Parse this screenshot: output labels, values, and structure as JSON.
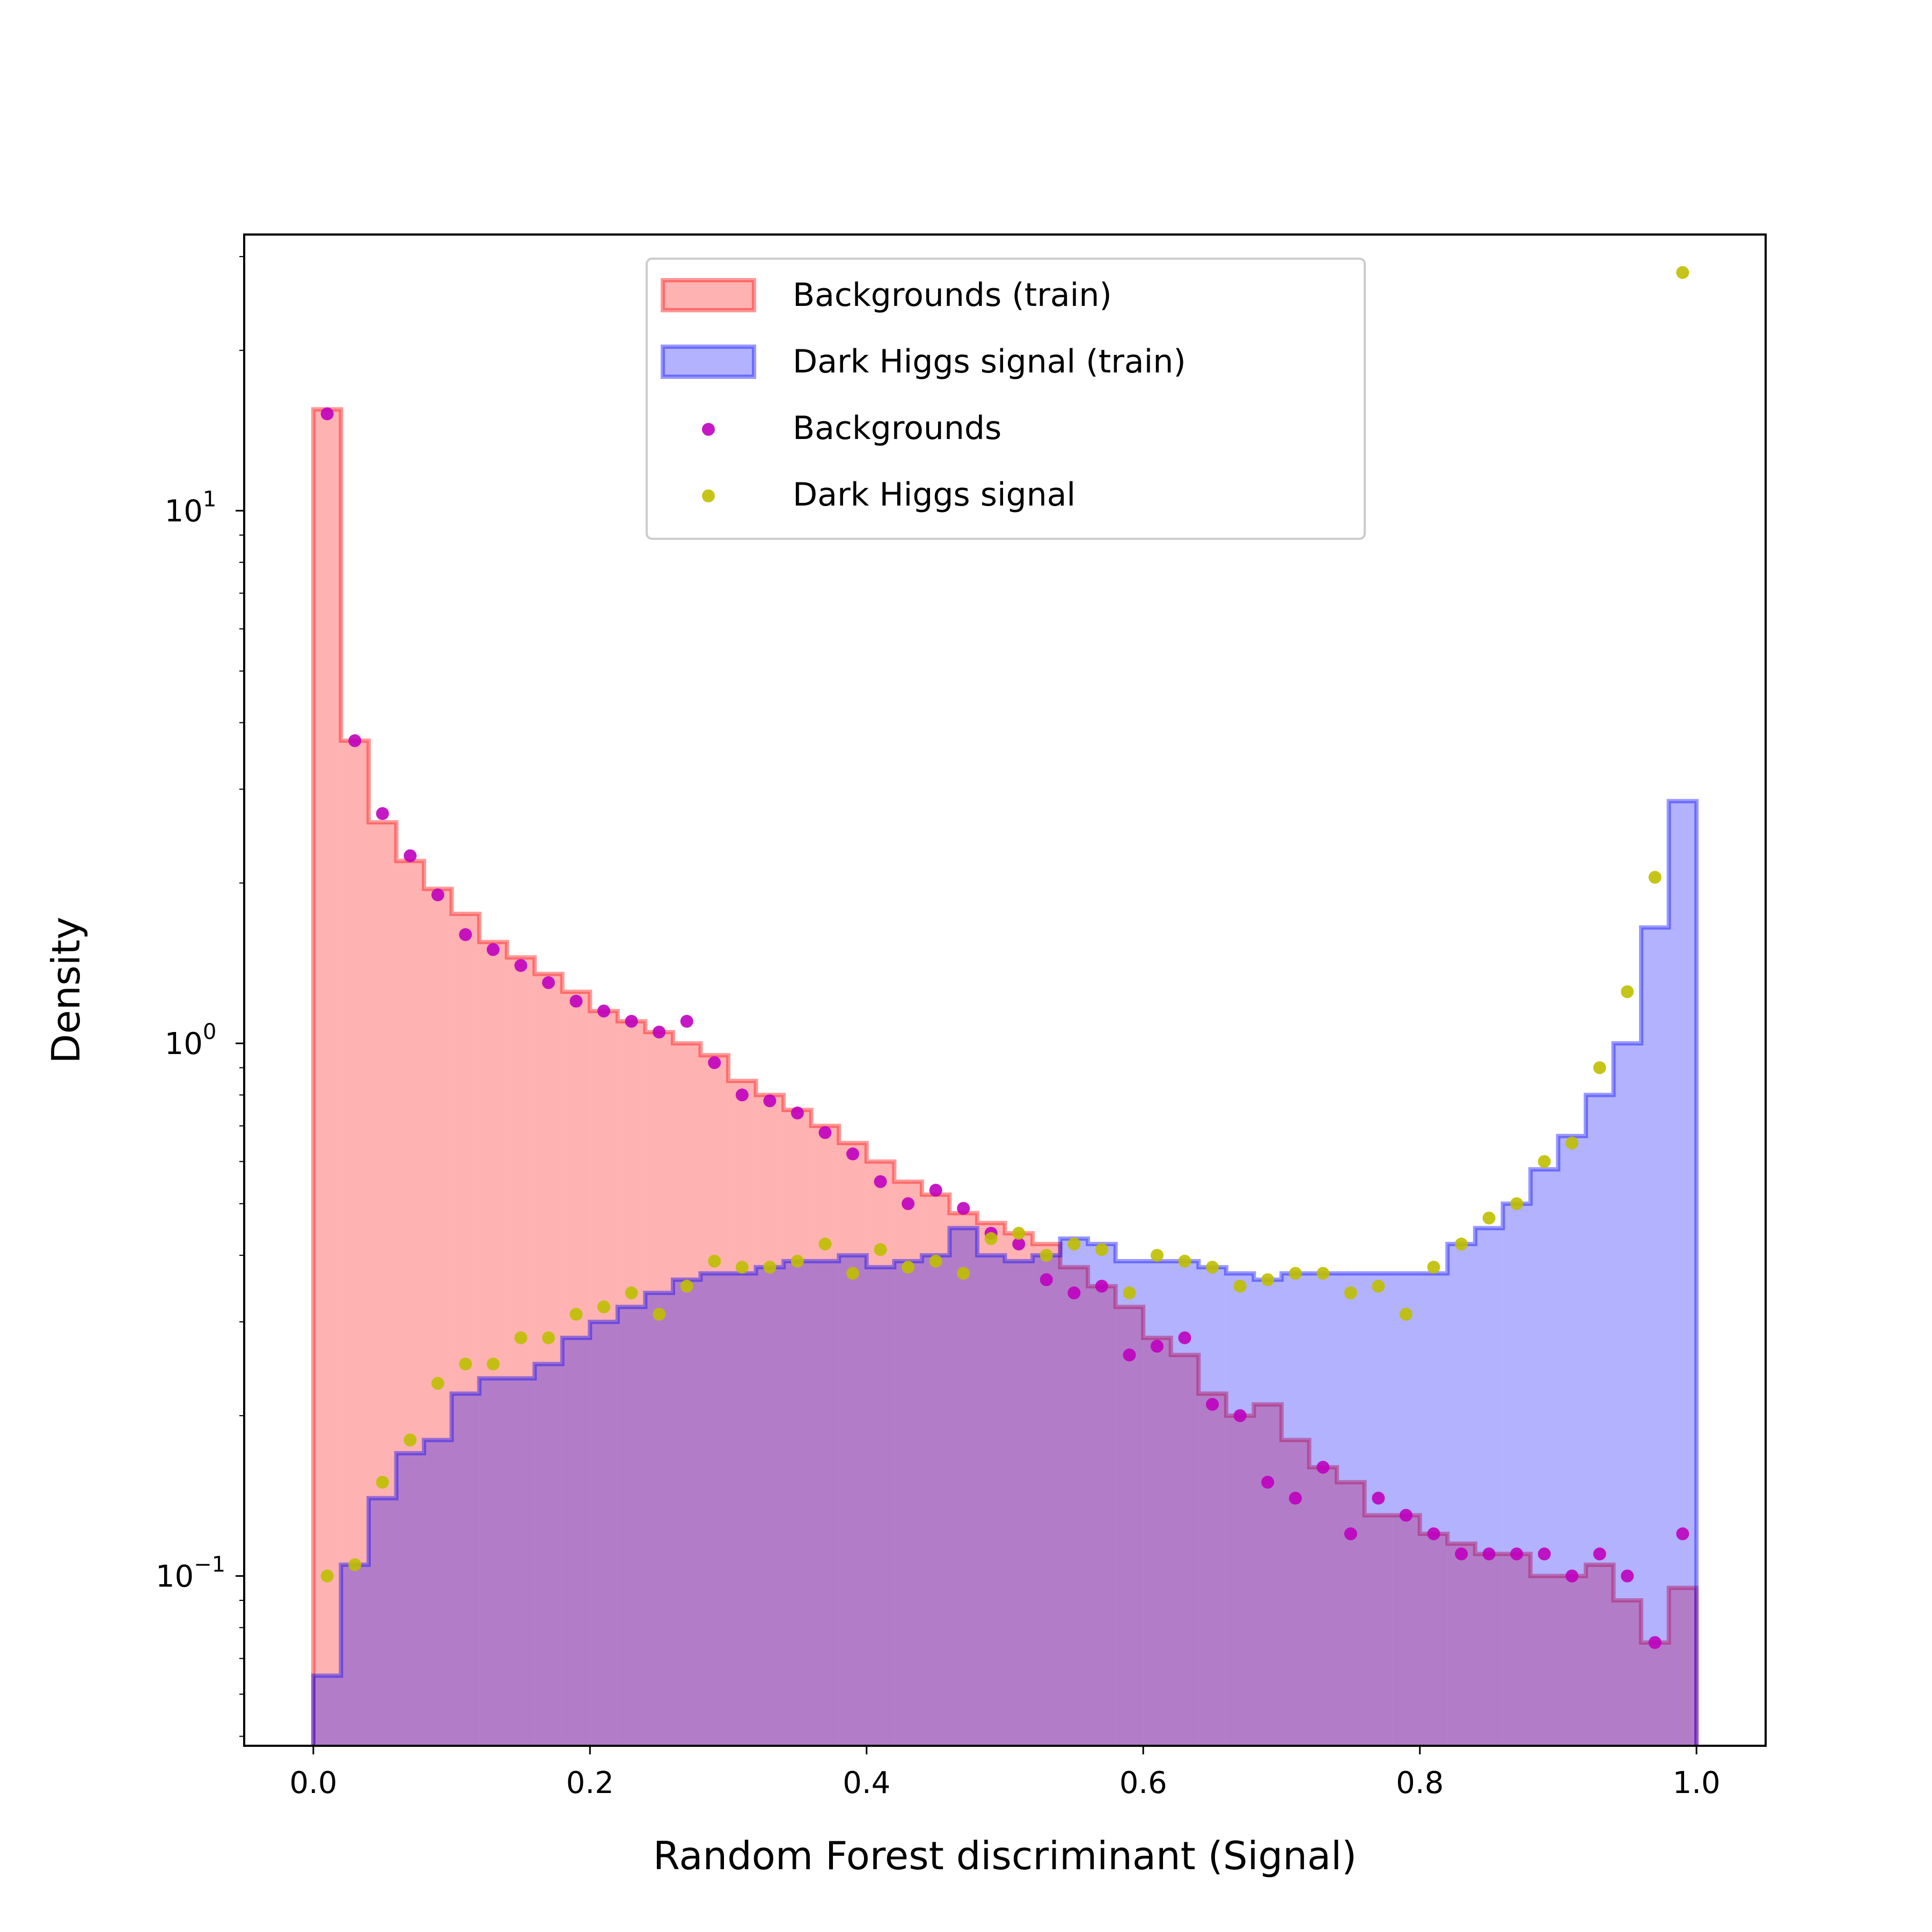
{
  "chart_data": {
    "type": "bar",
    "xlabel": "Random Forest discriminant (Signal)",
    "ylabel": "Density",
    "xlim": [
      -0.05,
      1.05
    ],
    "ylim": [
      0.048,
      33
    ],
    "yscale": "log",
    "xticks": [
      0.0,
      0.2,
      0.4,
      0.6,
      0.8,
      1.0
    ],
    "xtick_labels": [
      "0.0",
      "0.2",
      "0.4",
      "0.6",
      "0.8",
      "1.0"
    ],
    "yticks": [
      {
        "value": 10,
        "base": "10",
        "exp": "1"
      },
      {
        "value": 1,
        "base": "10",
        "exp": "0"
      },
      {
        "value": 0.1,
        "base": "10",
        "exp": "−1"
      }
    ],
    "bin_width": 0.02,
    "bin_centers": [
      0.01,
      0.03,
      0.05,
      0.07,
      0.09,
      0.11,
      0.13,
      0.15,
      0.17,
      0.19,
      0.21,
      0.23,
      0.25,
      0.27,
      0.29,
      0.31,
      0.33,
      0.35,
      0.37,
      0.39,
      0.41,
      0.43,
      0.45,
      0.47,
      0.49,
      0.51,
      0.53,
      0.55,
      0.57,
      0.59,
      0.61,
      0.63,
      0.65,
      0.67,
      0.69,
      0.71,
      0.73,
      0.75,
      0.77,
      0.79,
      0.81,
      0.83,
      0.85,
      0.87,
      0.89,
      0.91,
      0.93,
      0.95,
      0.97,
      0.99
    ],
    "legend_position": "upper center",
    "series": [
      {
        "name": "Backgrounds (train)",
        "kind": "histogram",
        "fill": "#ff0000",
        "fill_opacity": 0.3,
        "edge": "#ff0000",
        "values": [
          15.5,
          3.7,
          2.6,
          2.2,
          1.95,
          1.75,
          1.55,
          1.45,
          1.35,
          1.25,
          1.15,
          1.1,
          1.05,
          1.0,
          0.95,
          0.85,
          0.8,
          0.75,
          0.7,
          0.65,
          0.6,
          0.55,
          0.52,
          0.48,
          0.46,
          0.44,
          0.42,
          0.38,
          0.35,
          0.32,
          0.28,
          0.26,
          0.22,
          0.2,
          0.21,
          0.18,
          0.16,
          0.15,
          0.13,
          0.13,
          0.12,
          0.115,
          0.11,
          0.11,
          0.1,
          0.1,
          0.105,
          0.09,
          0.075,
          0.095
        ]
      },
      {
        "name": "Dark Higgs signal (train)",
        "kind": "histogram",
        "fill": "#0000ff",
        "fill_opacity": 0.3,
        "edge": "#0000ff",
        "values": [
          0.065,
          0.105,
          0.14,
          0.17,
          0.18,
          0.22,
          0.235,
          0.235,
          0.25,
          0.28,
          0.3,
          0.32,
          0.34,
          0.36,
          0.37,
          0.37,
          0.38,
          0.39,
          0.39,
          0.4,
          0.38,
          0.39,
          0.4,
          0.45,
          0.4,
          0.39,
          0.4,
          0.43,
          0.42,
          0.39,
          0.39,
          0.39,
          0.38,
          0.37,
          0.36,
          0.37,
          0.37,
          0.37,
          0.37,
          0.37,
          0.37,
          0.42,
          0.45,
          0.5,
          0.58,
          0.67,
          0.8,
          1.0,
          1.65,
          2.85
        ]
      },
      {
        "name": "Backgrounds",
        "kind": "scatter",
        "color": "#bf00bf",
        "values": [
          15.2,
          3.7,
          2.7,
          2.25,
          1.9,
          1.6,
          1.5,
          1.4,
          1.3,
          1.2,
          1.15,
          1.1,
          1.05,
          1.1,
          0.92,
          0.8,
          0.78,
          0.74,
          0.68,
          0.62,
          0.55,
          0.5,
          0.53,
          0.49,
          0.44,
          0.42,
          0.36,
          0.34,
          0.35,
          0.26,
          0.27,
          0.28,
          0.21,
          0.2,
          0.15,
          0.14,
          0.16,
          0.12,
          0.14,
          0.13,
          0.12,
          0.11,
          0.11,
          0.11,
          0.11,
          0.1,
          0.11,
          0.1,
          0.075,
          0.12
        ]
      },
      {
        "name": "Dark Higgs signal",
        "kind": "scatter",
        "color": "#bfbf00",
        "values": [
          0.1,
          0.105,
          0.15,
          0.18,
          0.23,
          0.25,
          0.25,
          0.28,
          0.28,
          0.31,
          0.32,
          0.34,
          0.31,
          0.35,
          0.39,
          0.38,
          0.38,
          0.39,
          0.42,
          0.37,
          0.41,
          0.38,
          0.39,
          0.37,
          0.43,
          0.44,
          0.4,
          0.42,
          0.41,
          0.34,
          0.4,
          0.39,
          0.38,
          0.35,
          0.36,
          0.37,
          0.37,
          0.34,
          0.35,
          0.31,
          0.38,
          0.42,
          0.47,
          0.5,
          0.6,
          0.65,
          0.9,
          1.25,
          2.05,
          28.0
        ]
      }
    ]
  }
}
